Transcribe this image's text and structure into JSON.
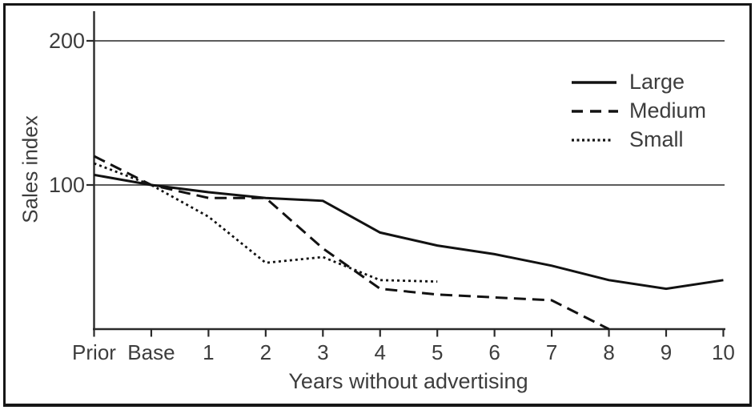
{
  "chart_data": {
    "type": "line",
    "title": "",
    "xlabel": "Years without advertising",
    "ylabel": "Sales index",
    "categories": [
      "Prior",
      "Base",
      "1",
      "2",
      "3",
      "4",
      "5",
      "6",
      "7",
      "8",
      "9",
      "10"
    ],
    "y_ticks": [
      {
        "label": "200",
        "value": 200
      },
      {
        "label": "100",
        "value": 100
      }
    ],
    "ylim": [
      0,
      220
    ],
    "grid": "horizontal-only",
    "legend_position": "top-right",
    "line_color": "#121212",
    "text_color": "#3d3d3d",
    "series": [
      {
        "name": "Large",
        "style": "solid",
        "values": [
          107,
          100,
          95,
          91,
          89,
          67,
          58,
          52,
          44,
          34,
          28,
          34
        ]
      },
      {
        "name": "Medium",
        "style": "dashed",
        "values": [
          120,
          100,
          91,
          91,
          56,
          28,
          24,
          22,
          20,
          0,
          null,
          null
        ]
      },
      {
        "name": "Small",
        "style": "dotted",
        "values": [
          115,
          100,
          78,
          46,
          50,
          34,
          33,
          null,
          null,
          null,
          null,
          null
        ]
      }
    ]
  }
}
